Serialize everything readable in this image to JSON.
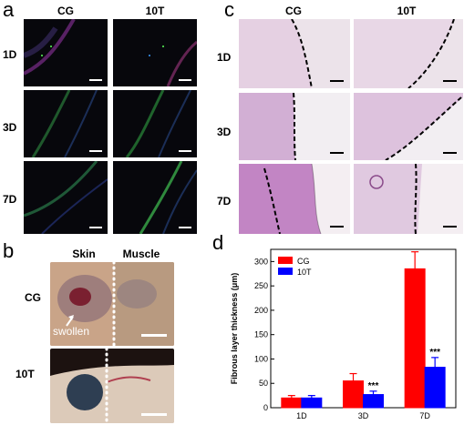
{
  "panels": {
    "a": {
      "label": "a",
      "columns": [
        "CG",
        "10T"
      ],
      "rows": [
        "1D",
        "3D",
        "7D"
      ]
    },
    "c": {
      "label": "c",
      "columns": [
        "CG",
        "10T"
      ],
      "rows": [
        "1D",
        "3D",
        "7D"
      ]
    },
    "b": {
      "label": "b",
      "columns": [
        "Skin",
        "Muscle"
      ],
      "rows": [
        "CG",
        "10T"
      ],
      "annotation": "swollen"
    },
    "d": {
      "label": "d"
    }
  },
  "chart_data": {
    "type": "bar",
    "categories": [
      "1D",
      "3D",
      "7D"
    ],
    "series": [
      {
        "name": "CG",
        "color": "#ff0000",
        "values": [
          20,
          55,
          285
        ],
        "errors": [
          5,
          15,
          35
        ]
      },
      {
        "name": "10T",
        "color": "#0000ff",
        "values": [
          20,
          27,
          83
        ],
        "errors": [
          5,
          7,
          20
        ]
      }
    ],
    "ylabel": "Fibrous layer thickness (μm)",
    "xlabel": "",
    "ylim": [
      0,
      325
    ],
    "yticks": [
      0,
      50,
      100,
      150,
      200,
      250,
      300
    ],
    "annotations": [
      {
        "category": "3D",
        "text": "***"
      },
      {
        "category": "7D",
        "text": "***"
      }
    ],
    "legend_position": "top-left"
  }
}
